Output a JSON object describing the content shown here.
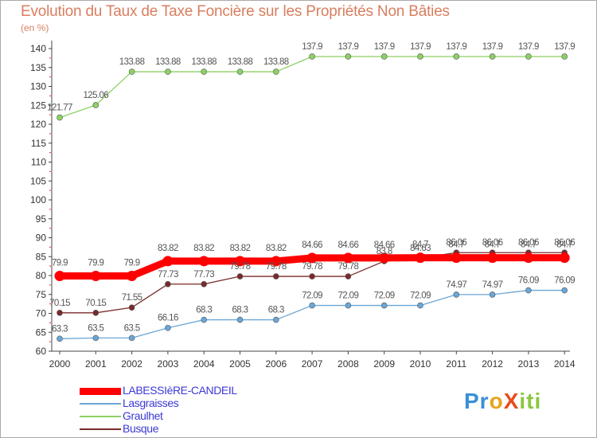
{
  "header": {
    "title": "Evolution du Taux de Taxe Foncière sur les Propriétés Non Bâties",
    "unit_label": "(en %)"
  },
  "logo": {
    "text": "ProXiti",
    "parts": [
      "Pr",
      "o",
      "X",
      "iti"
    ]
  },
  "chart_data": {
    "type": "line",
    "title": "Evolution du Taux de Taxe Foncière sur les Propriétés Non Bâties",
    "xlabel": "",
    "ylabel": "(en %)",
    "x": [
      "2000",
      "2001",
      "2002",
      "2003",
      "2004",
      "2005",
      "2006",
      "2007",
      "2008",
      "2009",
      "2010",
      "2011",
      "2012",
      "2013",
      "2014"
    ],
    "ylim": [
      60,
      140
    ],
    "yticks": [
      60,
      65,
      70,
      75,
      80,
      85,
      90,
      95,
      100,
      105,
      110,
      115,
      120,
      125,
      130,
      135,
      140
    ],
    "grid": false,
    "legend_position": "bottom-left",
    "series": [
      {
        "name": "LABESSIèRE-CANDEIL",
        "color": "#ff0000",
        "values": [
          79.9,
          79.9,
          79.9,
          83.82,
          83.82,
          83.82,
          83.82,
          84.66,
          84.66,
          84.66,
          84.7,
          84.7,
          84.7,
          84.7,
          84.7
        ],
        "labels": [
          "79.9",
          "79.9",
          "79.9",
          "83.82",
          "83.82",
          "83.82",
          "83.82",
          "84.66",
          "84.66",
          "84.66",
          "84.7",
          "84.7",
          "84.7",
          "84.7",
          "84.7"
        ]
      },
      {
        "name": "Lasgraisses",
        "color": "#6aa6d6",
        "values": [
          63.3,
          63.5,
          63.5,
          66.16,
          68.3,
          68.3,
          68.3,
          72.09,
          72.09,
          72.09,
          72.09,
          74.97,
          74.97,
          76.09,
          76.09
        ],
        "labels": [
          "63.3",
          "63.5",
          "63.5",
          "66.16",
          "68.3",
          "68.3",
          "68.3",
          "72.09",
          "72.09",
          "72.09",
          "72.09",
          "74.97",
          "74.97",
          "76.09",
          "76.09"
        ]
      },
      {
        "name": "Graulhet",
        "color": "#8cd164",
        "values": [
          121.77,
          125.06,
          133.88,
          133.88,
          133.88,
          133.88,
          133.88,
          137.9,
          137.9,
          137.9,
          137.9,
          137.9,
          137.9,
          137.9,
          137.9
        ],
        "labels": [
          "121.77",
          "125.06",
          "133.88",
          "133.88",
          "133.88",
          "133.88",
          "133.88",
          "137.9",
          "137.9",
          "137.9",
          "137.9",
          "137.9",
          "137.9",
          "137.9",
          "137.9"
        ]
      },
      {
        "name": "Busque",
        "color": "#7a2a2a",
        "values": [
          70.15,
          70.15,
          71.55,
          77.73,
          77.73,
          79.78,
          79.78,
          79.78,
          79.78,
          83.8,
          84.63,
          86.06,
          86.06,
          86.06,
          86.06
        ],
        "labels": [
          "70.15",
          "70.15",
          "71.55",
          "77.73",
          "77.73",
          "79.78",
          "79.78",
          "79.78",
          "79.78",
          "83.8",
          "84.63",
          "86.06",
          "86.06",
          "86.06",
          "86.06"
        ]
      }
    ]
  }
}
